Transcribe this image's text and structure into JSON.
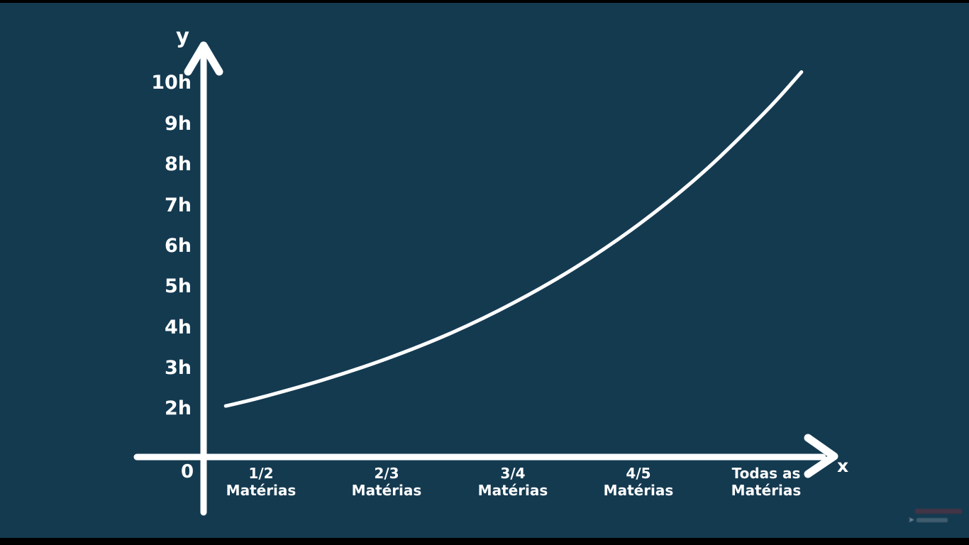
{
  "frame": {
    "background_color": "#143a50",
    "letterbox_color": "#000000"
  },
  "chart_data": {
    "type": "line",
    "title": "",
    "ylabel": "y",
    "xlabel": "x",
    "origin_label": "0",
    "y_ticks": [
      "10h",
      "9h",
      "8h",
      "7h",
      "6h",
      "5h",
      "4h",
      "3h",
      "2h"
    ],
    "y_tick_hours": [
      10,
      9,
      8,
      7,
      6,
      5,
      4,
      3,
      2
    ],
    "categories": [
      {
        "top": "1/2",
        "bottom": "Matérias"
      },
      {
        "top": "2/3",
        "bottom": "Matérias"
      },
      {
        "top": "3/4",
        "bottom": "Matérias"
      },
      {
        "top": "4/5",
        "bottom": "Matérias"
      },
      {
        "top": "Todas as",
        "bottom": "Matérias"
      }
    ],
    "series": [
      {
        "name": "study-hours-curve",
        "shape": "exponential-growth",
        "values_hours_at_categories": [
          2.3,
          3.2,
          4.6,
          6.5,
          9.3
        ]
      }
    ],
    "curve_samples": [
      {
        "t": -0.28,
        "h": 2.05
      },
      {
        "t": 0.0,
        "h": 2.26
      },
      {
        "t": 0.5,
        "h": 2.7
      },
      {
        "t": 1.0,
        "h": 3.22
      },
      {
        "t": 1.5,
        "h": 3.84
      },
      {
        "t": 2.0,
        "h": 4.59
      },
      {
        "t": 2.5,
        "h": 5.48
      },
      {
        "t": 3.0,
        "h": 6.54
      },
      {
        "t": 3.5,
        "h": 7.8
      },
      {
        "t": 4.0,
        "h": 9.31
      },
      {
        "t": 4.28,
        "h": 10.27
      }
    ],
    "ylim": [
      0,
      11
    ],
    "grid": false,
    "legend_position": "none",
    "axis_color": "#ffffff",
    "curve_color": "#ffffff",
    "text_color": "#ffffff",
    "plot_background": "#143a50"
  },
  "watermark": {
    "icon": "arrow-logo-icon",
    "legible": false
  }
}
